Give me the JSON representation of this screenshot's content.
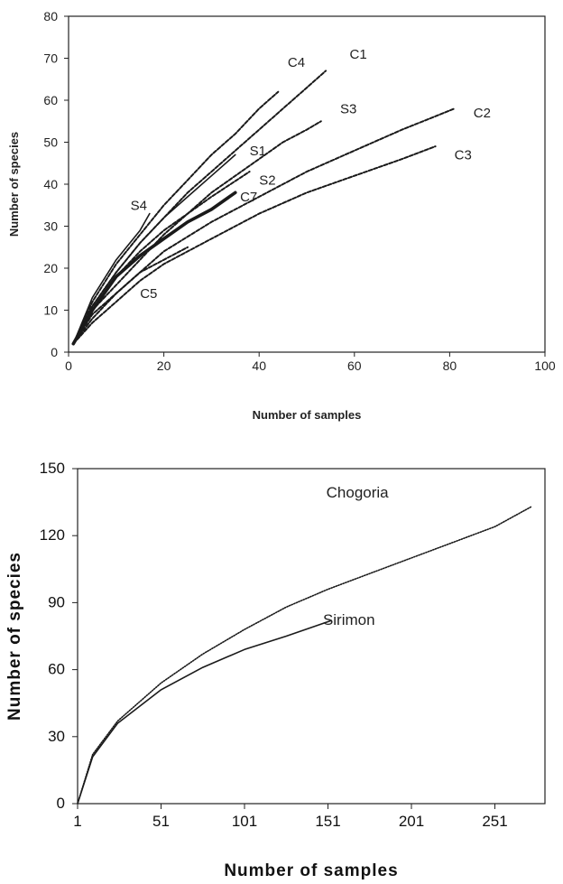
{
  "chart_data": [
    {
      "type": "line",
      "xlabel": "Number of samples",
      "ylabel": "Number of species",
      "xlim": [
        0,
        100
      ],
      "ylim": [
        0,
        80
      ],
      "xticks": [
        0,
        20,
        40,
        60,
        80,
        100
      ],
      "yticks": [
        0,
        10,
        20,
        30,
        40,
        50,
        60,
        70,
        80
      ],
      "grid": false,
      "legend": "none (series labeled directly on the lines)",
      "series": [
        {
          "name": "C1",
          "style": "dashed",
          "x": [
            1,
            5,
            10,
            15,
            20,
            25,
            30,
            35,
            40,
            45,
            50,
            54
          ],
          "y": [
            2,
            11,
            19,
            26,
            32,
            38,
            43,
            48,
            53,
            58,
            63,
            67
          ],
          "label_at": [
            59,
            71
          ]
        },
        {
          "name": "C4",
          "style": "dashed",
          "x": [
            1,
            5,
            10,
            15,
            20,
            25,
            30,
            35,
            40,
            44
          ],
          "y": [
            2,
            12,
            21,
            28,
            35,
            41,
            47,
            52,
            58,
            62
          ],
          "label_at": [
            46,
            69
          ]
        },
        {
          "name": "S3",
          "style": "dashed",
          "x": [
            1,
            5,
            10,
            15,
            20,
            25,
            30,
            35,
            40,
            45,
            50,
            53
          ],
          "y": [
            2,
            10,
            16,
            22,
            28,
            33,
            38,
            42,
            46,
            50,
            53,
            55
          ],
          "label_at": [
            57,
            58
          ]
        },
        {
          "name": "C2",
          "style": "dashed",
          "x": [
            1,
            5,
            10,
            15,
            20,
            30,
            40,
            50,
            60,
            70,
            81
          ],
          "y": [
            2,
            8,
            14,
            19,
            24,
            31,
            37,
            43,
            48,
            53,
            58
          ],
          "label_at": [
            85,
            57
          ]
        },
        {
          "name": "C3",
          "style": "dashed",
          "x": [
            1,
            5,
            10,
            15,
            20,
            30,
            40,
            50,
            60,
            70,
            77
          ],
          "y": [
            2,
            7,
            12,
            17,
            21,
            27,
            33,
            38,
            42,
            46,
            49
          ],
          "label_at": [
            81,
            47
          ]
        },
        {
          "name": "S1",
          "style": "solid",
          "x": [
            1,
            5,
            10,
            15,
            20,
            25,
            30,
            35
          ],
          "y": [
            2,
            11,
            19,
            26,
            32,
            37,
            42,
            47
          ],
          "label_at": [
            38,
            48
          ]
        },
        {
          "name": "S4",
          "style": "solid",
          "x": [
            1,
            5,
            10,
            15,
            17
          ],
          "y": [
            2,
            13,
            22,
            29,
            33
          ],
          "label_at": [
            13,
            35
          ]
        },
        {
          "name": "S2",
          "style": "dashed",
          "x": [
            1,
            5,
            10,
            15,
            20,
            25,
            30,
            38
          ],
          "y": [
            2,
            10,
            18,
            24,
            29,
            33,
            37,
            43
          ],
          "label_at": [
            40,
            41
          ]
        },
        {
          "name": "C7",
          "style": "bold",
          "x": [
            1,
            5,
            10,
            15,
            20,
            25,
            30,
            35
          ],
          "y": [
            2,
            10,
            18,
            23,
            27,
            31,
            34,
            38
          ],
          "label_at": [
            36,
            37
          ]
        },
        {
          "name": "C5",
          "style": "dashed",
          "x": [
            1,
            5,
            10,
            15,
            20,
            25
          ],
          "y": [
            2,
            9,
            14,
            19,
            22,
            25
          ],
          "label_at": [
            15,
            14
          ]
        }
      ]
    },
    {
      "type": "line",
      "xlabel": "Number of samples",
      "ylabel": "Number of species",
      "xlim": [
        1,
        281
      ],
      "ylim": [
        0,
        150
      ],
      "xticks": [
        1,
        51,
        101,
        151,
        201,
        251
      ],
      "yticks": [
        0,
        30,
        60,
        90,
        120,
        150
      ],
      "grid": false,
      "legend": "none (series labeled directly on the lines)",
      "series": [
        {
          "name": "Chogoria",
          "style": "dotted",
          "x": [
            1,
            10,
            25,
            51,
            76,
            101,
            126,
            151,
            176,
            201,
            226,
            251,
            273
          ],
          "y": [
            0,
            22,
            37,
            54,
            67,
            78,
            88,
            96,
            103,
            110,
            117,
            124,
            133
          ],
          "label_at": [
            150,
            139
          ]
        },
        {
          "name": "Sirimon",
          "style": "solid",
          "x": [
            1,
            10,
            25,
            51,
            76,
            101,
            126,
            153
          ],
          "y": [
            0,
            21,
            36,
            51,
            61,
            69,
            75,
            82
          ],
          "label_at": [
            148,
            82
          ]
        }
      ]
    }
  ]
}
